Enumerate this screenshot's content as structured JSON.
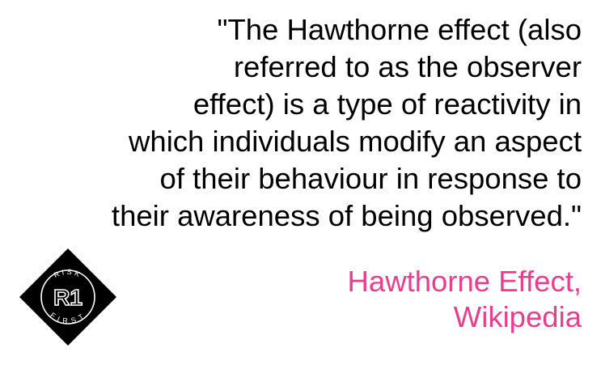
{
  "quote": {
    "lines": [
      "\"The Hawthorne effect (also",
      "referred to as the observer",
      "effect) is a type of reactivity in",
      "which individuals modify an aspect",
      "of their behaviour in response to",
      "their awareness of being observed.\""
    ],
    "color": "#000000"
  },
  "attribution": {
    "lines": [
      "Hawthorne Effect,",
      "Wikipedia"
    ],
    "color": "#e83e8c"
  },
  "logo": {
    "icon": "risk-first-logo",
    "monogram": "R1",
    "ring_top": "RISK",
    "ring_bottom": "FIRST"
  }
}
